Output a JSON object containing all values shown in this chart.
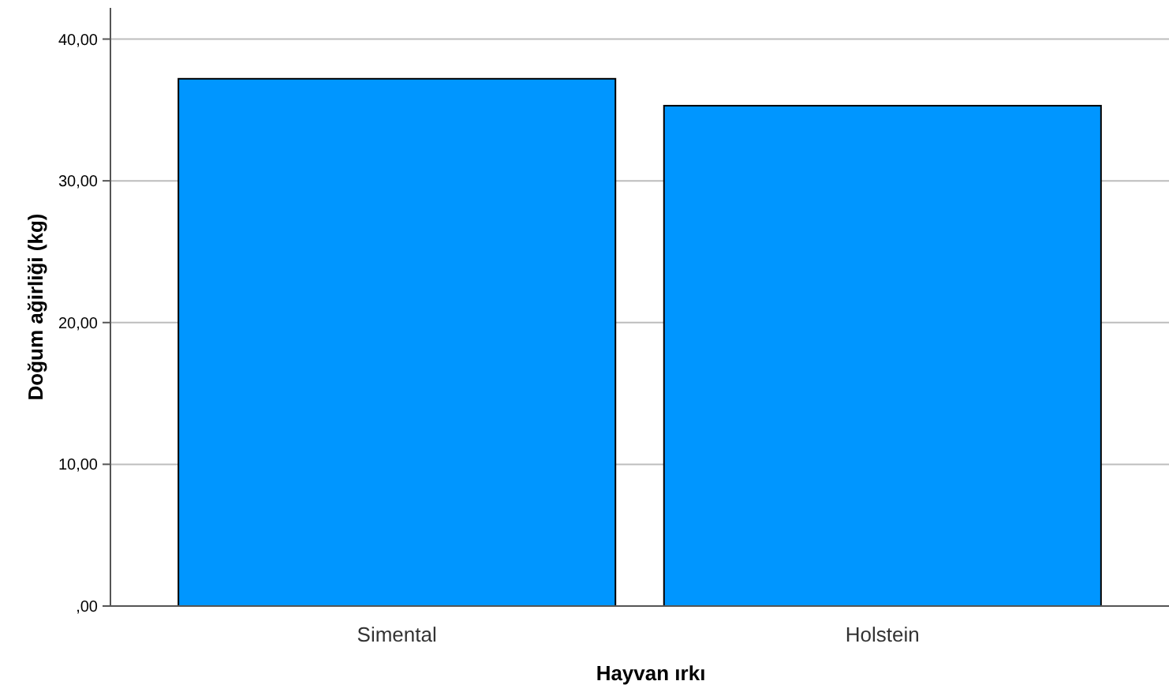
{
  "chart_data": {
    "type": "bar",
    "xlabel": "Hayvan ırkı",
    "ylabel": "Doğum ağirliği (kg)",
    "categories": [
      "Simental",
      "Holstein"
    ],
    "values": [
      37.2,
      35.3
    ],
    "color": "#0096ff",
    "ylim": [
      0,
      42.2
    ],
    "yticks": [
      {
        "value": 0,
        "label": ",00"
      },
      {
        "value": 10,
        "label": "10,00"
      },
      {
        "value": 20,
        "label": "20,00"
      },
      {
        "value": 30,
        "label": "30,00"
      },
      {
        "value": 40,
        "label": "40,00"
      }
    ],
    "grid": "y"
  }
}
